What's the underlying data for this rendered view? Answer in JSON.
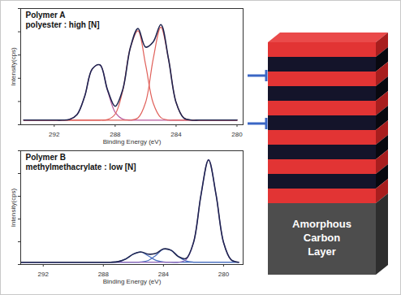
{
  "chart_data": [
    {
      "type": "line",
      "title": "Polymer A",
      "subtitle": "polyester : high [N]",
      "xlabel": "Binding Energy (eV)",
      "ylabel": "Intensity(cps)",
      "x": [
        294,
        293.5,
        293,
        292.5,
        292,
        291.5,
        291,
        290.5,
        290,
        289.5,
        289,
        288.5,
        288,
        287.5,
        287,
        286.5,
        286,
        285.5,
        285,
        284.5,
        284,
        283.5,
        283,
        282.5,
        282,
        281.5,
        281,
        280.5,
        280
      ],
      "series": [
        {
          "color": "#b85a9e",
          "values": [
            4,
            4,
            4,
            4,
            4,
            4,
            4.5,
            8.8,
            24.5,
            48,
            51.5,
            29.5,
            10.8,
            4.9,
            4,
            4,
            4,
            4,
            4,
            4,
            4,
            4,
            4,
            4,
            4,
            4,
            4,
            4,
            4
          ]
        },
        {
          "color": "#e0605a",
          "values": [
            4,
            4,
            4,
            4,
            4,
            4,
            4,
            4,
            4,
            4,
            4,
            4.5,
            9.1,
            29.4,
            66.4,
            80.9,
            51.6,
            18.5,
            6.2,
            4,
            4,
            4,
            4,
            4,
            4,
            4,
            4,
            4,
            4
          ]
        },
        {
          "color": "#e0605a",
          "values": [
            4,
            4,
            4,
            4,
            4,
            4,
            4,
            4,
            4,
            4,
            4,
            4,
            4,
            4,
            4,
            5.9,
            19.2,
            56.8,
            84,
            56.8,
            19.2,
            5.9,
            4,
            4,
            4,
            4,
            4,
            4,
            4
          ]
        },
        {
          "color": "#1f2550",
          "values": [
            4,
            4,
            4,
            4,
            4,
            4,
            4.5,
            8.8,
            24.5,
            48,
            51.5,
            30,
            15.9,
            30.3,
            66.4,
            82.8,
            66.8,
            71.3,
            86.2,
            56.8,
            19.2,
            5.9,
            4,
            4,
            4,
            4,
            4,
            4,
            4
          ]
        }
      ],
      "xlim": [
        294.2,
        279.6
      ],
      "xticks": [
        292,
        288,
        284,
        280
      ],
      "ylim": [
        0,
        100
      ],
      "yticks": [
        0,
        20,
        40,
        60,
        80,
        100
      ],
      "tick_labels": "x",
      "grid": false
    },
    {
      "type": "line",
      "title": "Polymer B",
      "subtitle": "methylmethacrylate : low [N]",
      "xlabel": "Binding Energy (eV)",
      "ylabel": "Intensity(cps)",
      "x": [
        293.5,
        293,
        292.5,
        292,
        291.5,
        291,
        290.5,
        290,
        289.5,
        289,
        288.5,
        288,
        287.5,
        287,
        286.5,
        286,
        285.5,
        285,
        284.5,
        284,
        283.5,
        283,
        282.5,
        282,
        281.5,
        281,
        280.5,
        280,
        279.5,
        279
      ],
      "series": [
        {
          "color": "#4a6fc0",
          "values": [
            2,
            2,
            2,
            2,
            2,
            2,
            2,
            2,
            2,
            2,
            2,
            2,
            2,
            2.6,
            4.9,
            9.2,
            10.9,
            7.5,
            3.7,
            2.3,
            2,
            2,
            2,
            2,
            2,
            2,
            2,
            2,
            2,
            2
          ]
        },
        {
          "color": "#4a6fc0",
          "values": [
            2,
            2,
            2,
            2,
            2,
            2,
            2,
            2,
            2,
            2,
            2,
            2,
            2,
            2,
            2,
            2,
            2.2,
            3.6,
            8.1,
            13.4,
            12.6,
            6.9,
            3.1,
            2.1,
            2,
            2,
            2,
            2,
            2,
            2
          ]
        },
        {
          "color": "#8a62b8",
          "values": [
            2,
            2,
            2,
            2,
            2,
            2,
            2,
            2,
            2,
            2,
            2,
            2,
            2,
            2,
            2,
            2,
            2,
            2,
            2,
            2,
            2,
            2,
            4.2,
            19.3,
            61.4,
            92,
            61.4,
            19.3,
            4.2,
            2
          ]
        },
        {
          "color": "#1f2550",
          "values": [
            2,
            2,
            2,
            2,
            2,
            2,
            2,
            2,
            2,
            2,
            2,
            2,
            2,
            2.6,
            4.9,
            9.2,
            11.1,
            9.1,
            9.8,
            13.7,
            12.6,
            6.9,
            5.3,
            19.4,
            61.4,
            92,
            61.4,
            19.3,
            4.2,
            2
          ]
        }
      ],
      "xlim": [
        293.5,
        278.7
      ],
      "xticks": [
        292,
        288,
        284,
        280
      ],
      "ylim": [
        0,
        100
      ],
      "yticks": [
        0,
        20,
        40,
        60,
        80,
        100
      ],
      "tick_labels": "x",
      "grid": false
    }
  ],
  "diagram": {
    "label": "Amorphous Carbon Layer"
  }
}
